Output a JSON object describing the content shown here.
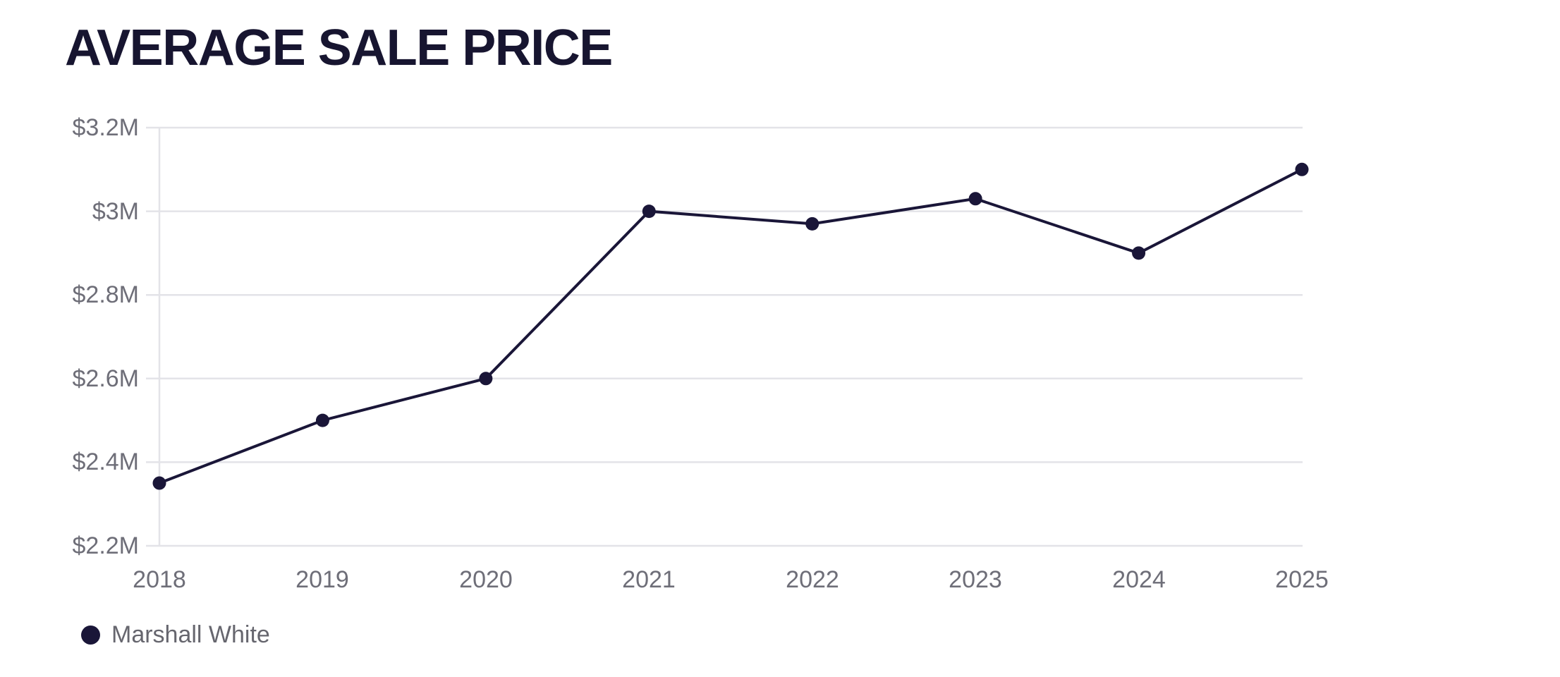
{
  "header": {
    "title": "AVERAGE SALE PRICE"
  },
  "legend": {
    "items": [
      {
        "label": "Marshall White",
        "color": "#1a1638"
      }
    ]
  },
  "chart_data": {
    "type": "line",
    "title": "AVERAGE SALE PRICE",
    "categories": [
      "2018",
      "2019",
      "2020",
      "2021",
      "2022",
      "2023",
      "2024",
      "2025"
    ],
    "series": [
      {
        "name": "Marshall White",
        "color": "#1a1638",
        "values": [
          2.35,
          2.5,
          2.6,
          3.0,
          2.97,
          3.03,
          2.9,
          3.1
        ]
      }
    ],
    "xlabel": "",
    "ylabel": "",
    "ylim": [
      2.2,
      3.2
    ],
    "y_ticks": [
      3.2,
      3.0,
      2.8,
      2.6,
      2.4,
      2.2
    ],
    "y_tick_labels": [
      "$3.2M",
      "$3M",
      "$2.8M",
      "$2.6M",
      "$2.4M",
      "$2.2M"
    ],
    "grid": "horizontal",
    "first_category_vertical_gridline": true,
    "marker": "circle",
    "legend_position": "bottom-left",
    "colors": {
      "line": "#1a1638",
      "grid": "#e3e3e8",
      "tick_label": "#6e6e78",
      "title": "#171530"
    }
  }
}
